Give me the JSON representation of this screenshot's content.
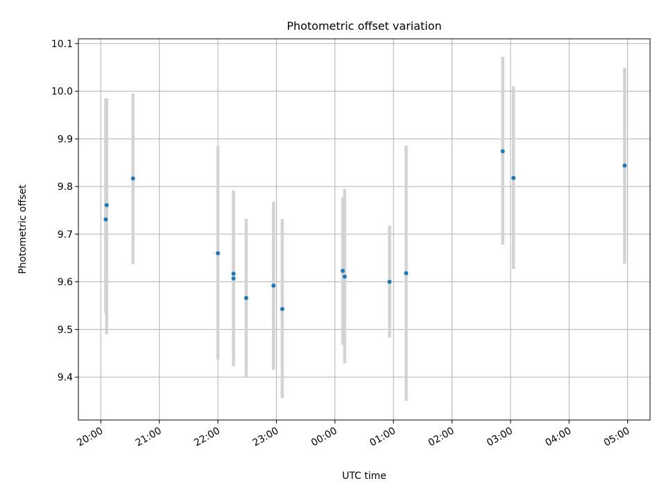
{
  "chart_data": {
    "type": "scatter",
    "title": "Photometric offset variation",
    "xlabel": "UTC time",
    "ylabel": "Photometric offset",
    "x_unit": "UTC time (HH:MM)",
    "xlim": [
      "19:37",
      "05:23"
    ],
    "ylim": [
      9.31,
      10.11
    ],
    "grid": true,
    "x_ticks": [
      "20:00",
      "21:00",
      "22:00",
      "23:00",
      "00:00",
      "01:00",
      "02:00",
      "03:00",
      "04:00",
      "05:00"
    ],
    "y_ticks": [
      "9.4",
      "9.5",
      "9.6",
      "9.7",
      "9.8",
      "9.9",
      "10.0",
      "10.1"
    ],
    "colors": {
      "points": "#1f77b4",
      "error_bars": "#d3d3d3",
      "grid": "#b0b0b0"
    },
    "series": [
      {
        "points": [
          {
            "x": "20:05",
            "y": 9.731,
            "err_low": 9.535,
            "err_high": 9.985
          },
          {
            "x": "20:06",
            "y": 9.761,
            "err_low": 9.49,
            "err_high": 9.985
          },
          {
            "x": "20:33",
            "y": 9.817,
            "err_low": 9.637,
            "err_high": 9.995
          },
          {
            "x": "22:00",
            "y": 9.66,
            "err_low": 9.437,
            "err_high": 9.885
          },
          {
            "x": "22:16",
            "y": 9.607,
            "err_low": 9.423,
            "err_high": 9.792
          },
          {
            "x": "22:16",
            "y": 9.617,
            "err_low": 9.445,
            "err_high": 9.788
          },
          {
            "x": "22:29",
            "y": 9.566,
            "err_low": 9.4,
            "err_high": 9.732
          },
          {
            "x": "22:57",
            "y": 9.592,
            "err_low": 9.415,
            "err_high": 9.768
          },
          {
            "x": "23:06",
            "y": 9.543,
            "err_low": 9.356,
            "err_high": 9.732
          },
          {
            "x": "00:08",
            "y": 9.623,
            "err_low": 9.468,
            "err_high": 9.777
          },
          {
            "x": "00:10",
            "y": 9.611,
            "err_low": 9.429,
            "err_high": 9.795
          },
          {
            "x": "00:56",
            "y": 9.6,
            "err_low": 9.483,
            "err_high": 9.718
          },
          {
            "x": "01:13",
            "y": 9.618,
            "err_low": 9.35,
            "err_high": 9.886
          },
          {
            "x": "02:52",
            "y": 9.874,
            "err_low": 9.678,
            "err_high": 10.072
          },
          {
            "x": "03:03",
            "y": 9.818,
            "err_low": 9.627,
            "err_high": 10.01
          },
          {
            "x": "04:57",
            "y": 9.844,
            "err_low": 9.638,
            "err_high": 10.049
          }
        ]
      }
    ]
  }
}
